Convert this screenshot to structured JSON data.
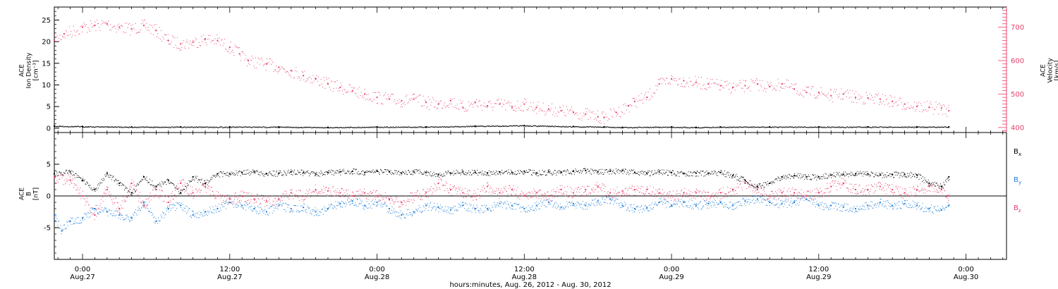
{
  "colors": {
    "axis": "#000000",
    "density": "#000000",
    "velocity": "#e8406a",
    "bx": "#000000",
    "by": "#1f7fd8",
    "bz": "#e8406a"
  },
  "x_axis": {
    "start_day": "Aug. 26, 2012",
    "ticks": [
      {
        "hours": 24,
        "time": "0:00",
        "date": "Aug.27"
      },
      {
        "hours": 36,
        "time": "12:00",
        "date": "Aug.27"
      },
      {
        "hours": 48,
        "time": "0:00",
        "date": "Aug.28"
      },
      {
        "hours": 60,
        "time": "12:00",
        "date": "Aug.28"
      },
      {
        "hours": 72,
        "time": "0:00",
        "date": "Aug.29"
      },
      {
        "hours": 84,
        "time": "12:00",
        "date": "Aug.29"
      },
      {
        "hours": 96,
        "time": "0:00",
        "date": "Aug.30"
      }
    ],
    "label": "hours:minutes, Aug. 26, 2012 - Aug. 30, 2012"
  },
  "chart_data": [
    {
      "type": "scatter",
      "title": "",
      "ylabel_left": [
        "ACE",
        "Ion Density",
        "[cm⁻³]"
      ],
      "ylabel_right": [
        "ACE",
        "Velocity",
        "[km/s]"
      ],
      "xlim_hours": [
        21.7,
        99.3
      ],
      "ylim_left": [
        -1,
        28
      ],
      "ylim_right": [
        385,
        760
      ],
      "left_ticks": [
        0,
        5,
        10,
        15,
        20,
        25
      ],
      "right_ticks": [
        400,
        500,
        600,
        700
      ],
      "series": [
        {
          "axis": "left",
          "color": "#000000",
          "x_hours": [
            21.7,
            24,
            28,
            32,
            36,
            40,
            44,
            48,
            52,
            56,
            60,
            64,
            66.5,
            68,
            72,
            74,
            76,
            80,
            84,
            88,
            92,
            94.6
          ],
          "values": [
            0.5,
            0.4,
            0.3,
            0.3,
            0.3,
            0.3,
            0.2,
            0.3,
            0.3,
            0.5,
            0.6,
            0.4,
            0.3,
            0.2,
            0.3,
            0.2,
            0.3,
            0.3,
            0.3,
            0.3,
            0.3,
            0.3
          ]
        },
        {
          "axis": "right",
          "color": "#e8406a",
          "x_hours": [
            21.7,
            22.5,
            24,
            25,
            26,
            27,
            28,
            29,
            30,
            31,
            32,
            33,
            34,
            35,
            36,
            36.8,
            37.5,
            39,
            40,
            41,
            42,
            43,
            44,
            45,
            46,
            47,
            48,
            49,
            50,
            51,
            52,
            53,
            54,
            55,
            56,
            57,
            58,
            59,
            60,
            61,
            62,
            63,
            64,
            65,
            66,
            66.5,
            67.5,
            68.5,
            69,
            70,
            71,
            72,
            73,
            74,
            75,
            76,
            77,
            78,
            79,
            80,
            81,
            82,
            83,
            84,
            85,
            86,
            87,
            88,
            89,
            90,
            91,
            92,
            93,
            94,
            94.6
          ],
          "values": [
            660,
            680,
            700,
            705,
            710,
            700,
            695,
            705,
            690,
            660,
            650,
            655,
            665,
            660,
            640,
            620,
            600,
            590,
            580,
            570,
            555,
            545,
            530,
            520,
            510,
            500,
            490,
            485,
            480,
            485,
            475,
            470,
            480,
            460,
            475,
            465,
            470,
            462,
            470,
            460,
            455,
            450,
            445,
            440,
            432,
            430,
            445,
            465,
            478,
            490,
            530,
            545,
            540,
            535,
            530,
            525,
            520,
            525,
            530,
            522,
            530,
            515,
            505,
            505,
            495,
            500,
            490,
            488,
            485,
            478,
            470,
            463,
            460,
            458,
            450
          ]
        }
      ]
    },
    {
      "type": "scatter",
      "title": "",
      "ylabel_left": [
        "ACE",
        "B",
        "[nT]"
      ],
      "xlim_hours": [
        21.7,
        99.3
      ],
      "ylim": [
        -10,
        10
      ],
      "ticks": [
        -5,
        0,
        5
      ],
      "zero_line": true,
      "legend": [
        "Bx",
        "By",
        "Bz"
      ],
      "legend_placement": "right",
      "series": [
        {
          "name": "Bx",
          "color": "#000000",
          "x_hours": [
            21.7,
            23,
            24,
            25,
            26,
            27,
            28,
            29,
            30,
            31,
            32,
            33,
            34,
            35,
            36,
            37,
            38,
            39,
            40,
            41,
            42,
            43,
            44,
            45,
            46,
            47,
            48,
            49,
            50,
            51,
            52,
            53,
            54,
            55,
            56,
            57,
            58,
            59,
            60,
            61,
            62,
            63,
            64,
            65,
            66,
            67,
            68,
            69,
            70,
            71,
            72,
            73,
            74,
            75,
            76,
            77,
            78,
            79,
            80,
            81,
            82,
            83,
            84,
            85,
            86,
            87,
            88,
            89,
            90,
            91,
            92,
            93,
            94,
            94.6
          ],
          "values": [
            3.5,
            3.8,
            2.5,
            1.0,
            3.5,
            2.0,
            0.5,
            3.0,
            1.5,
            2.5,
            0.5,
            3.0,
            2.0,
            3.5,
            3.5,
            3.7,
            3.8,
            3.5,
            3.6,
            3.8,
            3.7,
            3.5,
            3.7,
            3.8,
            3.9,
            3.7,
            3.9,
            3.8,
            3.6,
            3.8,
            3.7,
            3.4,
            3.6,
            3.8,
            3.7,
            3.6,
            3.8,
            3.7,
            3.9,
            3.6,
            3.8,
            3.7,
            3.9,
            4.0,
            3.8,
            3.9,
            4.0,
            3.7,
            3.6,
            3.8,
            3.7,
            3.5,
            3.6,
            3.6,
            3.7,
            3.2,
            2.5,
            1.5,
            2.0,
            3.0,
            3.2,
            3.0,
            3.0,
            3.3,
            3.4,
            3.5,
            3.5,
            3.3,
            3.4,
            3.4,
            3.3,
            2.0,
            1.5,
            3.0
          ]
        },
        {
          "name": "By",
          "color": "#1f7fd8",
          "x_hours": [
            21.7,
            22.3,
            23,
            24,
            25,
            26,
            27,
            28,
            29,
            30,
            31,
            32,
            33,
            34,
            35,
            36,
            37,
            38,
            39,
            40,
            41,
            42,
            43,
            44,
            45,
            46,
            47,
            48,
            49,
            50,
            51,
            52,
            53,
            54,
            55,
            56,
            57,
            58,
            59,
            60,
            61,
            62,
            63,
            64,
            65,
            66,
            67,
            68,
            69,
            70,
            71,
            72,
            73,
            74,
            75,
            76,
            77,
            78,
            79,
            80,
            81,
            82,
            83,
            84,
            85,
            86,
            87,
            88,
            89,
            90,
            91,
            92,
            93,
            94,
            94.6
          ],
          "values": [
            -3.0,
            -5.5,
            -4.0,
            -3.5,
            -2.0,
            -2.5,
            -3.0,
            -3.5,
            -1.0,
            -4.0,
            -2.0,
            -1.5,
            -3.0,
            -2.5,
            -2.0,
            -1.0,
            -1.5,
            -2.0,
            -2.5,
            -1.5,
            -2.0,
            -1.8,
            -2.5,
            -2.0,
            -1.2,
            -0.8,
            -1.5,
            -1.0,
            -2.0,
            -3.0,
            -2.5,
            -1.5,
            -1.8,
            -2.2,
            -1.5,
            -2.0,
            -2.0,
            -1.2,
            -1.5,
            -2.0,
            -1.5,
            -1.0,
            -1.8,
            -1.2,
            -1.5,
            -0.8,
            -0.5,
            -1.5,
            -2.0,
            -1.8,
            -1.0,
            -1.5,
            -1.0,
            -1.5,
            -1.2,
            -1.0,
            -1.5,
            -0.8,
            -0.5,
            -1.0,
            -1.2,
            -1.0,
            -0.5,
            -1.5,
            -1.5,
            -1.8,
            -2.0,
            -1.5,
            -1.0,
            -1.5,
            -1.2,
            -1.5,
            -2.0,
            -2.2,
            -1.5
          ]
        },
        {
          "name": "Bz",
          "color": "#e8406a",
          "x_hours": [
            21.7,
            23,
            24,
            25,
            26,
            27,
            28,
            29,
            30,
            31,
            32,
            33,
            34,
            35,
            36,
            37,
            38,
            39,
            40,
            41,
            42,
            43,
            44,
            45,
            46,
            47,
            48,
            49,
            50,
            51,
            52,
            53,
            54,
            55,
            56,
            57,
            58,
            59,
            60,
            61,
            62,
            63,
            64,
            65,
            66,
            67,
            68,
            69,
            70,
            71,
            72,
            73,
            74,
            75,
            76,
            77,
            78,
            79,
            80,
            81,
            82,
            83,
            84,
            85,
            86,
            87,
            88,
            89,
            90,
            91,
            92,
            93,
            94,
            94.6
          ],
          "values": [
            3.0,
            2.5,
            0.0,
            -3.0,
            1.0,
            -2.0,
            2.0,
            -1.5,
            1.0,
            -1.0,
            2.0,
            0.5,
            1.5,
            0.0,
            -0.5,
            0.0,
            -0.5,
            -0.8,
            -0.5,
            0.5,
            0.0,
            1.0,
            0.8,
            0.5,
            0.0,
            0.5,
            0.0,
            -0.5,
            -1.0,
            0.0,
            0.5,
            2.0,
            1.0,
            0.5,
            0.0,
            1.5,
            0.5,
            1.0,
            0.0,
            0.5,
            0.0,
            1.0,
            0.5,
            1.0,
            1.5,
            0.5,
            0.8,
            1.0,
            1.0,
            0.5,
            0.0,
            0.5,
            0.5,
            0.0,
            0.5,
            1.0,
            2.0,
            1.0,
            0.0,
            0.5,
            0.5,
            0.0,
            0.5,
            1.5,
            2.0,
            1.0,
            1.0,
            1.5,
            1.0,
            0.5,
            1.0,
            1.5,
            1.0,
            0.0
          ]
        }
      ]
    }
  ]
}
